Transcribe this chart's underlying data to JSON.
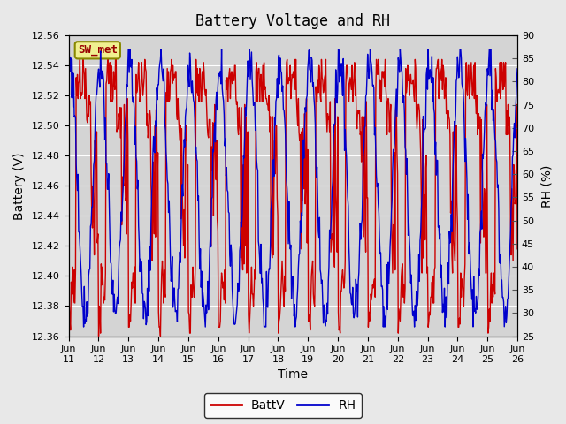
{
  "title": "Battery Voltage and RH",
  "xlabel": "Time",
  "ylabel_left": "Battery (V)",
  "ylabel_right": "RH (%)",
  "station_label": "SW_met",
  "ylim_left": [
    12.36,
    12.56
  ],
  "ylim_right": [
    25,
    90
  ],
  "yticks_left": [
    12.36,
    12.38,
    12.4,
    12.42,
    12.44,
    12.46,
    12.48,
    12.5,
    12.52,
    12.54,
    12.56
  ],
  "yticks_right": [
    25,
    30,
    35,
    40,
    45,
    50,
    55,
    60,
    65,
    70,
    75,
    80,
    85,
    90
  ],
  "xtick_labels": [
    "Jun\n11",
    "Jun\n12",
    "Jun\n13",
    "Jun\n14",
    "Jun\n15",
    "Jun\n16",
    "Jun\n17",
    "Jun\n18",
    "Jun\n19",
    "Jun\n20",
    "Jun\n21",
    "Jun\n22",
    "Jun\n23",
    "Jun\n24",
    "Jun\n25",
    "Jun\n26"
  ],
  "color_battv": "#cc0000",
  "color_rh": "#0000cc",
  "legend_labels": [
    "BattV",
    "RH"
  ],
  "fig_facecolor": "#e8e8e8",
  "axes_facecolor": "#d4d4d4",
  "grid_color": "#ffffff",
  "title_fontsize": 12,
  "label_fontsize": 10,
  "tick_fontsize": 8,
  "legend_fontsize": 10
}
